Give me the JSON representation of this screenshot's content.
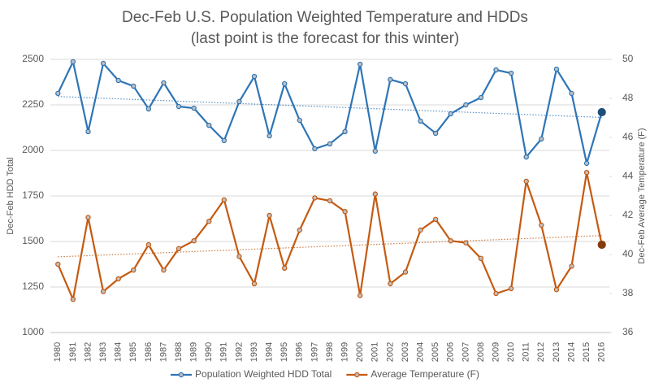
{
  "chart_data": {
    "type": "line",
    "title": "Dec-Feb U.S. Population Weighted Temperature and HDDs",
    "subtitle": "(last point is the forecast for this winter)",
    "y_label": "Dec-Feb HDD Total",
    "y2_label": "Dec-Feb Average Temperature (F)",
    "categories": [
      "1980",
      "1981",
      "1982",
      "1983",
      "1984",
      "1985",
      "1986",
      "1987",
      "1988",
      "1989",
      "1990",
      "1991",
      "1992",
      "1993",
      "1994",
      "1995",
      "1996",
      "1997",
      "1998",
      "1999",
      "2000",
      "2001",
      "2002",
      "2003",
      "2004",
      "2005",
      "2006",
      "2007",
      "2008",
      "2009",
      "2010",
      "2011",
      "2012",
      "2013",
      "2014",
      "2015",
      "2016"
    ],
    "series": [
      {
        "name": "Population Weighted HDD Total",
        "color": "#2e75b6",
        "last_color": "#1f4e79",
        "axis": "y",
        "values": [
          2313,
          2487,
          2103,
          2478,
          2384,
          2353,
          2228,
          2371,
          2241,
          2232,
          2138,
          2054,
          2268,
          2406,
          2080,
          2366,
          2165,
          2009,
          2036,
          2103,
          2473,
          1996,
          2389,
          2366,
          2161,
          2094,
          2201,
          2250,
          2290,
          2442,
          2424,
          1964,
          2063,
          2446,
          2313,
          1929,
          2210
        ]
      },
      {
        "name": "Average Temperature (F)",
        "color": "#c55a11",
        "last_color": "#843c0c",
        "axis": "y2",
        "values": [
          39.5,
          37.7,
          41.9,
          38.1,
          38.75,
          39.2,
          40.5,
          39.2,
          40.3,
          40.7,
          41.7,
          42.8,
          39.9,
          38.5,
          42.0,
          39.3,
          41.25,
          42.9,
          42.75,
          42.2,
          37.9,
          43.1,
          38.5,
          39.1,
          41.25,
          41.8,
          40.7,
          40.6,
          39.8,
          38.0,
          38.25,
          43.75,
          41.5,
          38.2,
          39.4,
          44.2,
          40.5
        ]
      }
    ],
    "ylim": [
      1000,
      2500
    ],
    "yticks": [
      1000,
      1250,
      1500,
      1750,
      2000,
      2250,
      2500
    ],
    "y2lim": [
      36,
      50
    ],
    "y2ticks": [
      36,
      38,
      40,
      42,
      44,
      46,
      48,
      50
    ],
    "grid": true,
    "trendline": true,
    "legend_position": "bottom"
  }
}
